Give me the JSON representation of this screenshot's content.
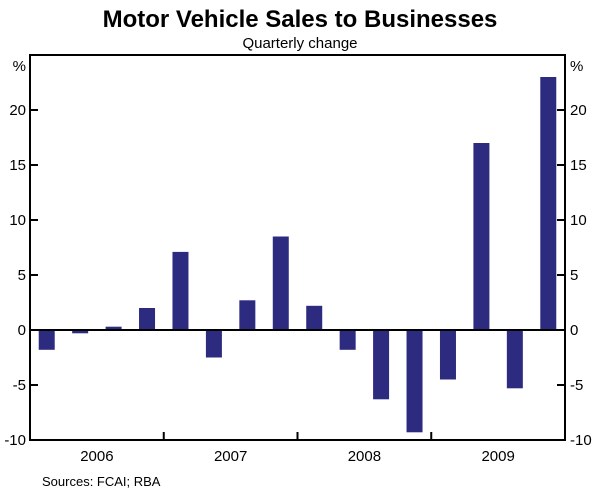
{
  "title": "Motor Vehicle Sales to Businesses",
  "subtitle": "Quarterly change",
  "source": "Sources: FCAI; RBA",
  "axis": {
    "left_unit": "%",
    "right_unit": "%"
  },
  "chart_data": {
    "type": "bar",
    "title": "Motor Vehicle Sales to Businesses",
    "subtitle": "Quarterly change",
    "ylabel": "%",
    "categories": [
      "2006Q1",
      "2006Q2",
      "2006Q3",
      "2006Q4",
      "2007Q1",
      "2007Q2",
      "2007Q3",
      "2007Q4",
      "2008Q1",
      "2008Q2",
      "2008Q3",
      "2008Q4",
      "2009Q1",
      "2009Q2",
      "2009Q3",
      "2009Q4"
    ],
    "values": [
      -1.8,
      -0.3,
      0.3,
      2.0,
      7.1,
      -2.5,
      2.7,
      8.5,
      2.2,
      -1.8,
      -6.3,
      -9.3,
      -4.5,
      17.0,
      -5.3,
      23.0
    ],
    "year_labels": [
      "2006",
      "2007",
      "2008",
      "2009"
    ],
    "yticks": [
      -10,
      -5,
      0,
      5,
      10,
      15,
      20
    ],
    "ylim": [
      -10,
      25
    ],
    "grid": false,
    "legend": false,
    "bar_color": "#2d2b80",
    "axis_color": "#000000"
  }
}
